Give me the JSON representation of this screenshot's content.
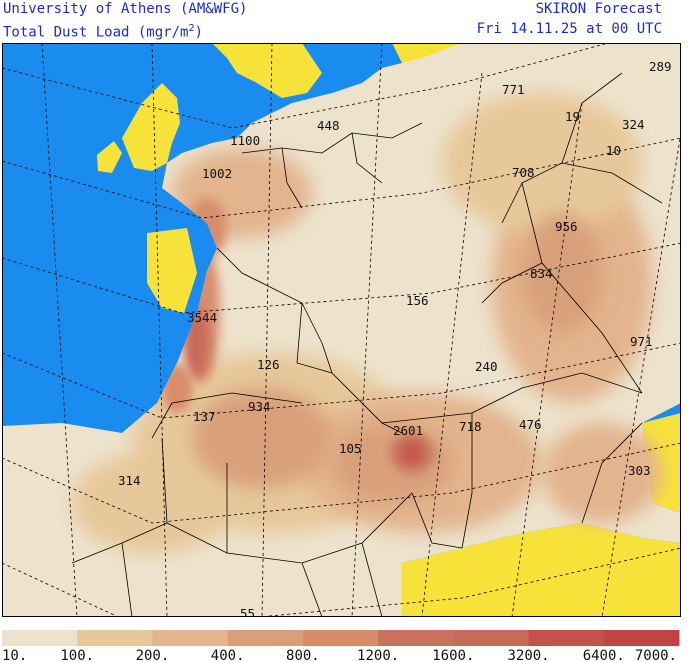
{
  "header": {
    "institution": "University of Athens (AM&WFG)",
    "field_prefix": "Total Dust Load (mgr/m",
    "field_sup": "2",
    "field_suffix": ")",
    "product": "SKIRON Forecast",
    "valid_time": "Fri 14.11.25 at 00 UTC"
  },
  "map": {
    "colors": {
      "sea": "#1a8cf0",
      "outside_land": "#f7e23a",
      "land_low": "#ede2cc",
      "border": "#000000",
      "grid": "#000000",
      "frame": "#000000"
    },
    "labels": [
      {
        "id": "lbl-771",
        "text": "771"
      },
      {
        "id": "lbl-289",
        "text": "289"
      },
      {
        "id": "lbl-448",
        "text": "448"
      },
      {
        "id": "lbl-1100",
        "text": "1100"
      },
      {
        "id": "lbl-19",
        "text": "19"
      },
      {
        "id": "lbl-324",
        "text": "324"
      },
      {
        "id": "lbl-1002",
        "text": "1002"
      },
      {
        "id": "lbl-10",
        "text": "10"
      },
      {
        "id": "lbl-708",
        "text": "708"
      },
      {
        "id": "lbl-956",
        "text": "956"
      },
      {
        "id": "lbl-834",
        "text": "834"
      },
      {
        "id": "lbl-156",
        "text": "156"
      },
      {
        "id": "lbl-3544",
        "text": "3544"
      },
      {
        "id": "lbl-971",
        "text": "971"
      },
      {
        "id": "lbl-126",
        "text": "126"
      },
      {
        "id": "lbl-240",
        "text": "240"
      },
      {
        "id": "lbl-934",
        "text": "934"
      },
      {
        "id": "lbl-137",
        "text": "137"
      },
      {
        "id": "lbl-2601",
        "text": "2601"
      },
      {
        "id": "lbl-718",
        "text": "718"
      },
      {
        "id": "lbl-476",
        "text": "476"
      },
      {
        "id": "lbl-105",
        "text": "105"
      },
      {
        "id": "lbl-314",
        "text": "314"
      },
      {
        "id": "lbl-303",
        "text": "303"
      },
      {
        "id": "lbl-55",
        "text": "55"
      }
    ]
  },
  "legend": {
    "colors": [
      "#ede2cc",
      "#e7c89a",
      "#e3b48d",
      "#d8a07a",
      "#d88d6a",
      "#c9735d",
      "#c86a5a",
      "#c4524a",
      "#bf4442"
    ],
    "labels": [
      "10.",
      "100.",
      "200.",
      "400.",
      "800.",
      "1200.",
      "1600.",
      "3200.",
      "6400.",
      "7000."
    ]
  }
}
